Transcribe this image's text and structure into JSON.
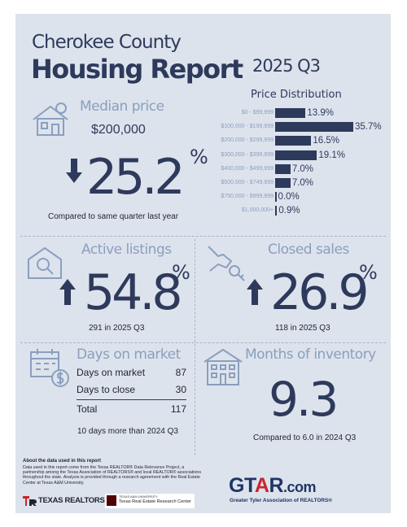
{
  "header": {
    "county": "Cherokee County",
    "report": "Housing Report",
    "quarter": "2025 Q3"
  },
  "median_price": {
    "title": "Median price",
    "value": "$200,000",
    "change": "25.2",
    "change_unit": "%",
    "direction": "down",
    "note": "Compared to same quarter last year"
  },
  "price_distribution": {
    "title": "Price Distribution",
    "rows": [
      {
        "range": "$0 - $99,999",
        "pct": "13.9%",
        "value": 13.9
      },
      {
        "range": "$100,000 - $199,999",
        "pct": "35.7%",
        "value": 35.7
      },
      {
        "range": "$200,000 - $299,999",
        "pct": "16.5%",
        "value": 16.5
      },
      {
        "range": "$300,000 - $399,999",
        "pct": "19.1%",
        "value": 19.1
      },
      {
        "range": "$400,000 - $499,999",
        "pct": "7.0%",
        "value": 7.0
      },
      {
        "range": "$500,000 - $749,999",
        "pct": "7.0%",
        "value": 7.0
      },
      {
        "range": "$750,000 - $999,999",
        "pct": "0.0%",
        "value": 0.0
      },
      {
        "range": "$1,000,000+",
        "pct": "0.9%",
        "value": 0.9
      }
    ]
  },
  "active_listings": {
    "title": "Active listings",
    "change": "54.8",
    "change_unit": "%",
    "direction": "up",
    "note": "291 in 2025 Q3"
  },
  "closed_sales": {
    "title": "Closed sales",
    "change": "26.9",
    "change_unit": "%",
    "direction": "up",
    "note": "118 in 2025 Q3"
  },
  "days_on_market": {
    "title": "Days on market",
    "rows": [
      {
        "label": "Days on market",
        "value": "87"
      },
      {
        "label": "Days to close",
        "value": "30"
      }
    ],
    "total_label": "Total",
    "total_value": "117",
    "note": "10 days more than 2024 Q3"
  },
  "months_inventory": {
    "title": "Months of inventory",
    "value": "9.3",
    "note": "Compared to 6.0 in 2024 Q3"
  },
  "footer": {
    "about_title": "About the data used in this report",
    "about_text": "Data used in this report come from the Texas REALTOR® Data Relevance Project, a partnership among the Texas Association of REALTORS® and local REALTOR® associations throughout the state. Analysis is provided through a research agreement with the Real Estate Center at Texas A&M University.",
    "texas_realtors": "TEXAS REALTORS",
    "tamu_small": "TEXAS A&M UNIVERSITY",
    "tamu_center": "Texas Real Estate Research Center",
    "gtar_logo": "GTAR.com",
    "gtar_tagline": "Greater Tyler Association of REALTORS®"
  },
  "colors": {
    "navy": "#2e3a5c",
    "steel": "#8a9fbf",
    "panel": "#dde3ec",
    "gtar_red": "#c8262e"
  }
}
